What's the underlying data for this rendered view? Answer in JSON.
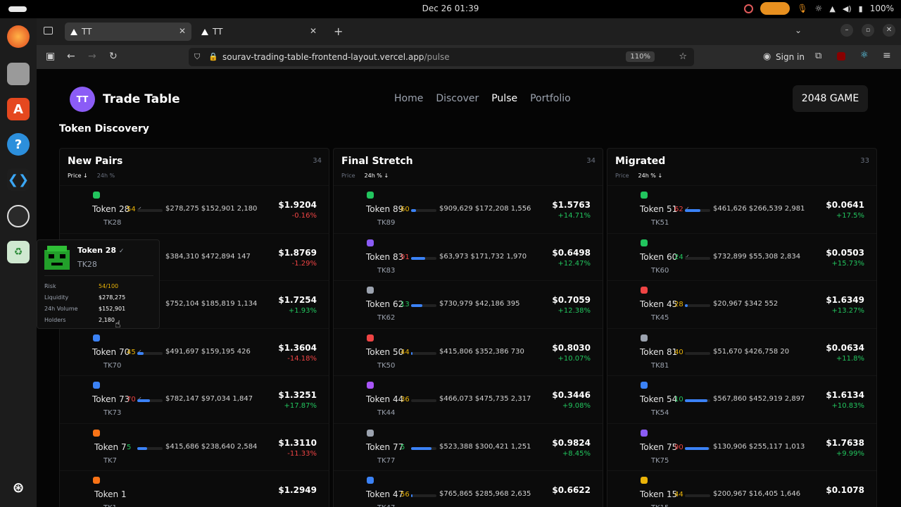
{
  "system": {
    "datetime": "Dec 26  01:39",
    "battery": "100%"
  },
  "browser": {
    "tabs": [
      {
        "title": "TT"
      },
      {
        "title": "TT"
      }
    ],
    "url_domain": "sourav-trading-table-frontend-layout.vercel.app",
    "url_path": "/pulse",
    "zoom": "110%",
    "signin": "Sign in"
  },
  "app": {
    "logo": "TT",
    "brand": "Trade Table",
    "nav": [
      "Home",
      "Discover",
      "Pulse",
      "Portfolio"
    ],
    "game_button": "2048 GAME",
    "section_title": "Token Discovery",
    "sort_labels": {
      "price": "Price",
      "change": "24h %"
    }
  },
  "columns": [
    {
      "title": "New Pairs",
      "count": "34",
      "price_sort": "Price ↓",
      "change_sort": "24h %",
      "rows": [
        {
          "name": "Token 28",
          "sym": "TK28",
          "risk": "54",
          "risk_color": "#eab308",
          "fill": 0,
          "stats": "$278,275 $152,901 2,180",
          "price": "$1.9204",
          "change": "-0.16%",
          "up": false,
          "icon_color": "#22c55e",
          "verified": true
        },
        {
          "name": "",
          "sym": "",
          "risk": "",
          "risk_color": "#eab308",
          "fill": 0,
          "stats": "$384,310 $472,894 147",
          "price": "$1.8769",
          "change": "-1.29%",
          "up": false,
          "icon_color": "#000",
          "verified": false
        },
        {
          "name": "",
          "sym": "",
          "risk": "",
          "risk_color": "#eab308",
          "fill": 0,
          "stats": "$752,104 $185,819 1,134",
          "price": "$1.7254",
          "change": "+1.93%",
          "up": true,
          "icon_color": "#000",
          "verified": false
        },
        {
          "name": "Token 70",
          "sym": "TK70",
          "risk": "45",
          "risk_color": "#eab308",
          "fill": 0.25,
          "stats": "$491,697 $159,195 426",
          "price": "$1.3604",
          "change": "-14.18%",
          "up": false,
          "icon_color": "#3b82f6",
          "verified": true
        },
        {
          "name": "Token 73",
          "sym": "TK73",
          "risk": "70",
          "risk_color": "#ef4444",
          "fill": 0.5,
          "stats": "$782,147 $97,034 1,847",
          "price": "$1.3251",
          "change": "+17.87%",
          "up": true,
          "icon_color": "#3b82f6",
          "verified": true
        },
        {
          "name": "Token 7",
          "sym": "TK7",
          "risk": "5",
          "risk_color": "#22c55e",
          "fill": 0.4,
          "stats": "$415,686 $238,640 2,584",
          "price": "$1.3110",
          "change": "-11.33%",
          "up": false,
          "icon_color": "#f97316",
          "verified": false
        },
        {
          "name": "Token 1",
          "sym": "TK1",
          "risk": "",
          "risk_color": "#eab308",
          "fill": 0,
          "stats": "",
          "price": "$1.2949",
          "change": "",
          "up": true,
          "icon_color": "#f97316",
          "verified": false
        }
      ]
    },
    {
      "title": "Final Stretch",
      "count": "34",
      "price_sort": "Price",
      "change_sort": "24h % ↓",
      "rows": [
        {
          "name": "Token 89",
          "sym": "TK89",
          "risk": "60",
          "risk_color": "#eab308",
          "fill": 0.2,
          "stats": "$909,629 $172,208 1,556",
          "price": "$1.5763",
          "change": "+14.71%",
          "up": true,
          "icon_color": "#22c55e",
          "verified": false
        },
        {
          "name": "Token 83",
          "sym": "TK83",
          "risk": "91",
          "risk_color": "#ef4444",
          "fill": 0.55,
          "stats": "$63,973 $171,732 1,970",
          "price": "$0.6498",
          "change": "+12.47%",
          "up": true,
          "icon_color": "#8b5cf6",
          "verified": false
        },
        {
          "name": "Token 62",
          "sym": "TK62",
          "risk": "13",
          "risk_color": "#22c55e",
          "fill": 0.45,
          "stats": "$730,979 $42,186 395",
          "price": "$0.7059",
          "change": "+12.38%",
          "up": true,
          "icon_color": "#9ca3af",
          "verified": false
        },
        {
          "name": "Token 50",
          "sym": "TK50",
          "risk": "44",
          "risk_color": "#eab308",
          "fill": 0.05,
          "stats": "$415,806 $352,386 730",
          "price": "$0.8030",
          "change": "+10.07%",
          "up": true,
          "icon_color": "#ef4444",
          "verified": false
        },
        {
          "name": "Token 44",
          "sym": "TK44",
          "risk": "36",
          "risk_color": "#eab308",
          "fill": 0,
          "stats": "$466,073 $475,735 2,317",
          "price": "$0.3446",
          "change": "+9.08%",
          "up": true,
          "icon_color": "#a855f7",
          "verified": false
        },
        {
          "name": "Token 77",
          "sym": "TK77",
          "risk": "5",
          "risk_color": "#22c55e",
          "fill": 0.8,
          "stats": "$523,388 $300,421 1,251",
          "price": "$0.9824",
          "change": "+8.45%",
          "up": true,
          "icon_color": "#9ca3af",
          "verified": false
        },
        {
          "name": "Token 47",
          "sym": "TK47",
          "risk": "56",
          "risk_color": "#eab308",
          "fill": 0.05,
          "stats": "$765,865 $285,968 2,635",
          "price": "$0.6622",
          "change": "",
          "up": true,
          "icon_color": "#3b82f6",
          "verified": false
        }
      ]
    },
    {
      "title": "Migrated",
      "count": "33",
      "price_sort": "Price",
      "change_sort": "24h % ↓",
      "rows": [
        {
          "name": "Token 51",
          "sym": "TK51",
          "risk": "62",
          "risk_color": "#ef4444",
          "fill": 0.6,
          "stats": "$461,626 $266,539 2,981",
          "price": "$0.0641",
          "change": "+17.5%",
          "up": true,
          "icon_color": "#22c55e",
          "verified": true
        },
        {
          "name": "Token 60",
          "sym": "TK60",
          "risk": "24",
          "risk_color": "#22c55e",
          "fill": 0,
          "stats": "$732,899 $55,308 2,834",
          "price": "$0.0503",
          "change": "+15.73%",
          "up": true,
          "icon_color": "#22c55e",
          "verified": true
        },
        {
          "name": "Token 45",
          "sym": "TK45",
          "risk": "28",
          "risk_color": "#eab308",
          "fill": 0.1,
          "stats": "$20,967 $342 552",
          "price": "$1.6349",
          "change": "+13.27%",
          "up": true,
          "icon_color": "#ef4444",
          "verified": false
        },
        {
          "name": "Token 81",
          "sym": "TK81",
          "risk": "40",
          "risk_color": "#eab308",
          "fill": 0,
          "stats": "$51,670 $426,758 20",
          "price": "$0.0634",
          "change": "+11.8%",
          "up": true,
          "icon_color": "#9ca3af",
          "verified": false
        },
        {
          "name": "Token 54",
          "sym": "TK54",
          "risk": "10",
          "risk_color": "#22c55e",
          "fill": 0.9,
          "stats": "$567,860 $452,919 2,897",
          "price": "$1.6134",
          "change": "+10.83%",
          "up": true,
          "icon_color": "#3b82f6",
          "verified": false
        },
        {
          "name": "Token 75",
          "sym": "TK75",
          "risk": "90",
          "risk_color": "#ef4444",
          "fill": 0.95,
          "stats": "$130,906 $255,117 1,013",
          "price": "$1.7638",
          "change": "+9.99%",
          "up": true,
          "icon_color": "#8b5cf6",
          "verified": false
        },
        {
          "name": "Token 15",
          "sym": "TK15",
          "risk": "44",
          "risk_color": "#eab308",
          "fill": 0,
          "stats": "$200,967 $16,405 1,646",
          "price": "$0.1078",
          "change": "",
          "up": true,
          "icon_color": "#eab308",
          "verified": false
        }
      ]
    }
  ],
  "tooltip": {
    "name": "Token 28",
    "sym": "TK28",
    "rows": [
      {
        "label": "Risk",
        "value": "54/100",
        "color": "#eab308"
      },
      {
        "label": "Liquidity",
        "value": "$278,275",
        "color": "#ffffff"
      },
      {
        "label": "24h Volume",
        "value": "$152,901",
        "color": "#ffffff"
      },
      {
        "label": "Holders",
        "value": "2,180",
        "color": "#ffffff"
      }
    ]
  }
}
